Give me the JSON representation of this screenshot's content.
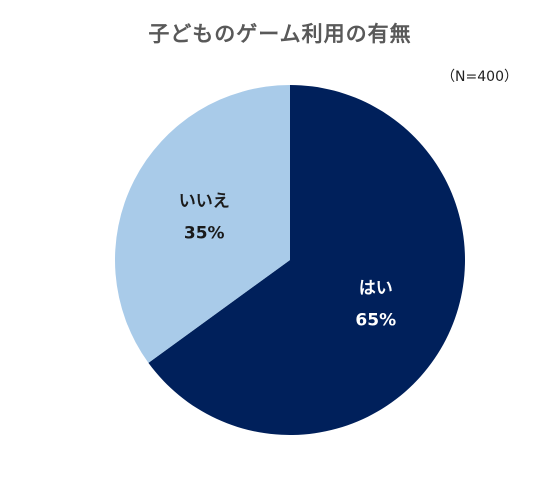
{
  "chart_data": {
    "type": "pie",
    "title": "子どものゲーム利用の有無",
    "note": "（N=400）",
    "slices": [
      {
        "label": "はい",
        "value": 65,
        "value_text": "65%",
        "color": "#00205b",
        "text_color": "#ffffff"
      },
      {
        "label": "いいえ",
        "value": 35,
        "value_text": "35%",
        "color": "#a9cbe9",
        "text_color": "#1a1a1a"
      }
    ],
    "start": "12 o'clock",
    "direction": "clockwise"
  }
}
